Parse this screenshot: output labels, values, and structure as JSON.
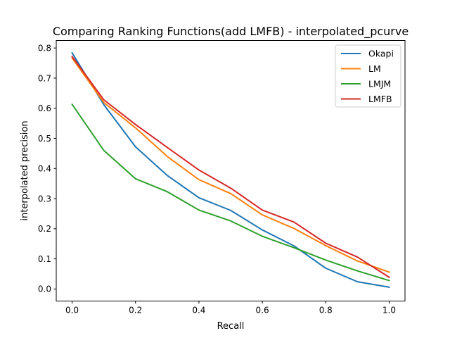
{
  "chart_data": {
    "type": "line",
    "title": "Comparing Ranking Functions(add LMFB) - interpolated_pcurve",
    "xlabel": "Recall",
    "ylabel": "interpolated precision",
    "xlim": [
      -0.05,
      1.05
    ],
    "ylim": [
      -0.04,
      0.825
    ],
    "xticks": [
      0.0,
      0.2,
      0.4,
      0.6,
      0.8,
      1.0
    ],
    "xtick_labels": [
      "0.0",
      "0.2",
      "0.4",
      "0.6",
      "0.8",
      "1.0"
    ],
    "yticks": [
      0.0,
      0.1,
      0.2,
      0.3,
      0.4,
      0.5,
      0.6,
      0.7,
      0.8
    ],
    "ytick_labels": [
      "0.0",
      "0.1",
      "0.2",
      "0.3",
      "0.4",
      "0.5",
      "0.6",
      "0.7",
      "0.8"
    ],
    "grid": false,
    "legend_position": "top-right",
    "x": [
      0.0,
      0.1,
      0.2,
      0.3,
      0.4,
      0.5,
      0.6,
      0.7,
      0.8,
      0.9,
      1.0
    ],
    "series": [
      {
        "name": "Okapi",
        "color": "#1f77b4",
        "values": [
          0.784,
          0.612,
          0.472,
          0.377,
          0.303,
          0.261,
          0.196,
          0.143,
          0.069,
          0.024,
          0.006
        ]
      },
      {
        "name": "LM",
        "color": "#ff7f0e",
        "values": [
          0.767,
          0.619,
          0.535,
          0.44,
          0.363,
          0.317,
          0.246,
          0.201,
          0.144,
          0.093,
          0.056
        ]
      },
      {
        "name": "LMJM",
        "color": "#2ca02c",
        "values": [
          0.613,
          0.46,
          0.366,
          0.323,
          0.262,
          0.226,
          0.175,
          0.137,
          0.096,
          0.06,
          0.028
        ]
      },
      {
        "name": "LMFB",
        "color": "#d62728",
        "values": [
          0.772,
          0.628,
          0.546,
          0.47,
          0.395,
          0.335,
          0.262,
          0.222,
          0.152,
          0.106,
          0.039
        ]
      }
    ]
  }
}
